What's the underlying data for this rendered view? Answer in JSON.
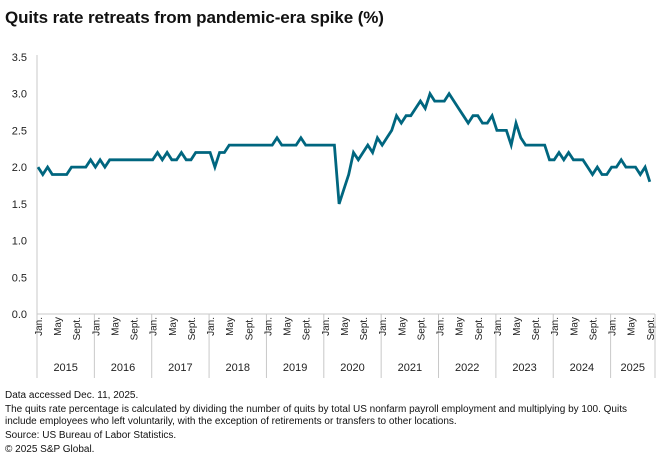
{
  "title": "Quits rate retreats from pandemic-era spike (%)",
  "chart_data": {
    "type": "line",
    "title": "Quits rate retreats from pandemic-era spike (%)",
    "xlabel": "",
    "ylabel": "",
    "ylim": [
      0,
      3.5
    ],
    "yticks": [
      "0.0",
      "0.5",
      "1.0",
      "1.5",
      "2.0",
      "2.5",
      "3.0",
      "3.5"
    ],
    "grid": false,
    "month_tick_labels": [
      "Jan.",
      "May",
      "Sept."
    ],
    "years": [
      "2015",
      "2016",
      "2017",
      "2018",
      "2019",
      "2020",
      "2021",
      "2022",
      "2023",
      "2024",
      "2025"
    ],
    "series": [
      {
        "name": "Quits rate",
        "color": "#00667f",
        "start": "2015-01",
        "values": [
          2.0,
          1.9,
          2.0,
          1.9,
          1.9,
          1.9,
          1.9,
          2.0,
          2.0,
          2.0,
          2.0,
          2.1,
          2.0,
          2.1,
          2.0,
          2.1,
          2.1,
          2.1,
          2.1,
          2.1,
          2.1,
          2.1,
          2.1,
          2.1,
          2.1,
          2.2,
          2.1,
          2.2,
          2.1,
          2.1,
          2.2,
          2.1,
          2.1,
          2.2,
          2.2,
          2.2,
          2.2,
          2.0,
          2.2,
          2.2,
          2.3,
          2.3,
          2.3,
          2.3,
          2.3,
          2.3,
          2.3,
          2.3,
          2.3,
          2.3,
          2.4,
          2.3,
          2.3,
          2.3,
          2.3,
          2.4,
          2.3,
          2.3,
          2.3,
          2.3,
          2.3,
          2.3,
          2.3,
          1.5,
          1.7,
          1.9,
          2.2,
          2.1,
          2.2,
          2.3,
          2.2,
          2.4,
          2.3,
          2.4,
          2.5,
          2.7,
          2.6,
          2.7,
          2.7,
          2.8,
          2.9,
          2.8,
          3.0,
          2.9,
          2.9,
          2.9,
          3.0,
          2.9,
          2.8,
          2.7,
          2.6,
          2.7,
          2.7,
          2.6,
          2.6,
          2.7,
          2.5,
          2.5,
          2.5,
          2.3,
          2.6,
          2.4,
          2.3,
          2.3,
          2.3,
          2.3,
          2.3,
          2.1,
          2.1,
          2.2,
          2.1,
          2.2,
          2.1,
          2.1,
          2.1,
          2.0,
          1.9,
          2.0,
          1.9,
          1.9,
          2.0,
          2.0,
          2.1,
          2.0,
          2.0,
          2.0,
          1.9,
          2.0,
          1.8
        ]
      }
    ]
  },
  "notes": {
    "accessed": "Data accessed Dec. 11, 2025.",
    "definition": "The quits rate percentage is calculated by dividing the number of quits by total US nonfarm payroll employment and multiplying by 100. Quits include employees who left voluntarily, with the exception of retirements or transfers to other locations.",
    "source": "Source: US Bureau of Labor Statistics.",
    "copyright": "© 2025 S&P Global."
  }
}
